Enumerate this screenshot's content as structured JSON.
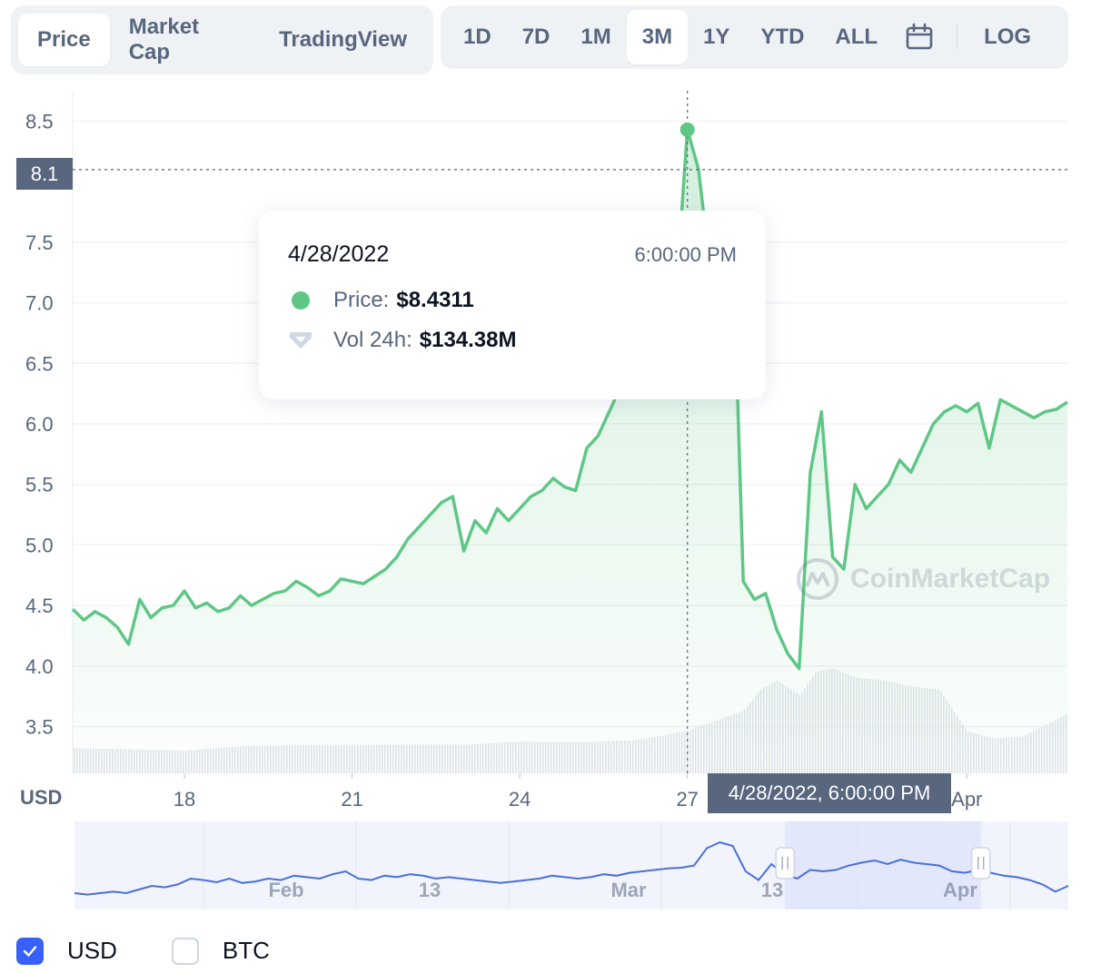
{
  "tabs": {
    "metric": [
      {
        "label": "Price",
        "active": true
      },
      {
        "label": "Market Cap",
        "active": false
      },
      {
        "label": "TradingView",
        "active": false
      }
    ],
    "range": [
      {
        "label": "1D",
        "active": false
      },
      {
        "label": "7D",
        "active": false
      },
      {
        "label": "1M",
        "active": false
      },
      {
        "label": "3M",
        "active": true
      },
      {
        "label": "1Y",
        "active": false
      },
      {
        "label": "YTD",
        "active": false
      },
      {
        "label": "ALL",
        "active": false
      }
    ],
    "calendar_icon": "calendar-icon",
    "log_label": "LOG"
  },
  "tooltip": {
    "date": "4/28/2022",
    "time": "6:00:00 PM",
    "price_key": "Price:",
    "price_value": "$8.4311",
    "vol_key": "Vol 24h:",
    "vol_value": "$134.38M"
  },
  "crosshair": {
    "y_value_label": "8.1",
    "x_value_label": "4/28/2022, 6:00:00 PM"
  },
  "axis_unit_label": "USD",
  "watermark": "CoinMarketCap",
  "legend": [
    {
      "label": "USD",
      "checked": true
    },
    {
      "label": "BTC",
      "checked": false
    }
  ],
  "colors": {
    "price_line": "#5fc786",
    "accent_blue": "#3861fb",
    "navigator_line": "#4a6fd6",
    "navigator_selection": "#e3e8fc",
    "text_secondary": "#58667e",
    "text_primary": "#0d1421"
  },
  "chart_data": {
    "type": "area",
    "title": "",
    "xlabel": "",
    "ylabel": "USD",
    "ylim": [
      3.2,
      8.7
    ],
    "yticks": [
      3.5,
      4.0,
      4.5,
      5.0,
      5.5,
      6.0,
      6.5,
      7.0,
      7.5,
      8.5
    ],
    "xticks": [
      "18",
      "21",
      "24",
      "27",
      "Apr"
    ],
    "grid": true,
    "series": [
      {
        "kind": "price",
        "x": [
          16.0,
          16.2,
          16.4,
          16.6,
          16.8,
          17.0,
          17.2,
          17.4,
          17.6,
          17.8,
          18.0,
          18.2,
          18.4,
          18.6,
          18.8,
          19.0,
          19.2,
          19.4,
          19.6,
          19.8,
          20.0,
          20.2,
          20.4,
          20.6,
          20.8,
          21.0,
          21.2,
          21.4,
          21.6,
          21.8,
          22.0,
          22.2,
          22.4,
          22.6,
          22.8,
          23.0,
          23.2,
          23.4,
          23.6,
          23.8,
          24.0,
          24.2,
          24.4,
          24.6,
          24.8,
          25.0,
          25.2,
          25.4,
          25.6,
          25.8,
          26.0,
          26.2,
          26.4,
          26.6,
          26.8,
          27.0,
          27.2,
          27.4,
          27.6,
          27.8,
          28.0,
          28.2,
          28.4,
          28.6,
          28.8,
          29.0,
          29.2,
          29.4,
          29.6,
          29.8,
          30.0,
          30.2,
          30.4,
          30.6,
          30.8,
          31.0,
          31.2,
          31.4,
          31.6,
          31.8,
          32.0,
          32.2,
          32.4,
          32.6,
          32.8,
          33.0,
          33.2,
          33.4,
          33.6,
          33.8
        ],
        "values": [
          4.47,
          4.38,
          4.45,
          4.4,
          4.32,
          4.18,
          4.55,
          4.4,
          4.48,
          4.5,
          4.62,
          4.48,
          4.52,
          4.45,
          4.48,
          4.58,
          4.5,
          4.55,
          4.6,
          4.62,
          4.7,
          4.65,
          4.58,
          4.62,
          4.72,
          4.7,
          4.68,
          4.74,
          4.8,
          4.9,
          5.05,
          5.15,
          5.25,
          5.35,
          5.4,
          4.95,
          5.2,
          5.1,
          5.3,
          5.2,
          5.3,
          5.4,
          5.45,
          5.55,
          5.48,
          5.45,
          5.8,
          5.9,
          6.1,
          6.3,
          6.5,
          6.7,
          6.85,
          6.55,
          7.1,
          8.43,
          8.1,
          7.3,
          7.1,
          7.7,
          4.7,
          4.55,
          4.6,
          4.3,
          4.1,
          3.98,
          5.6,
          6.1,
          4.9,
          4.8,
          5.5,
          5.3,
          5.4,
          5.5,
          5.7,
          5.6,
          5.8,
          6.0,
          6.1,
          6.15,
          6.1,
          6.17,
          5.8,
          6.2,
          6.15,
          6.1,
          6.05,
          6.1,
          6.12,
          6.18
        ]
      },
      {
        "kind": "volume",
        "x": [
          16.0,
          17.0,
          18.0,
          19.0,
          20.0,
          21.0,
          22.0,
          23.0,
          24.0,
          25.0,
          26.0,
          26.5,
          27.0,
          27.5,
          28.0,
          28.3,
          28.6,
          29.0,
          29.3,
          29.6,
          30.0,
          30.5,
          31.0,
          31.5,
          32.0,
          32.5,
          33.0,
          33.5,
          33.8
        ],
        "values": [
          0.42,
          0.4,
          0.38,
          0.45,
          0.47,
          0.47,
          0.48,
          0.48,
          0.53,
          0.52,
          0.55,
          0.62,
          0.72,
          0.88,
          1.05,
          1.4,
          1.55,
          1.3,
          1.7,
          1.75,
          1.6,
          1.55,
          1.45,
          1.4,
          0.7,
          0.58,
          0.62,
          0.85,
          1.0
        ]
      }
    ]
  },
  "navigator": {
    "labels": [
      "Feb",
      "13",
      "Mar",
      "13",
      "Apr"
    ],
    "selection_start_fraction": 0.715,
    "selection_end_fraction": 0.912,
    "values": [
      0.1,
      0.08,
      0.1,
      0.12,
      0.1,
      0.15,
      0.2,
      0.18,
      0.22,
      0.3,
      0.28,
      0.25,
      0.3,
      0.24,
      0.26,
      0.3,
      0.28,
      0.34,
      0.32,
      0.3,
      0.36,
      0.4,
      0.3,
      0.28,
      0.34,
      0.32,
      0.36,
      0.34,
      0.3,
      0.32,
      0.3,
      0.28,
      0.26,
      0.24,
      0.26,
      0.28,
      0.3,
      0.34,
      0.32,
      0.3,
      0.32,
      0.36,
      0.34,
      0.38,
      0.4,
      0.42,
      0.44,
      0.45,
      0.48,
      0.72,
      0.8,
      0.75,
      0.4,
      0.28,
      0.5,
      0.36,
      0.3,
      0.42,
      0.4,
      0.42,
      0.48,
      0.52,
      0.55,
      0.5,
      0.56,
      0.52,
      0.5,
      0.48,
      0.4,
      0.38,
      0.42,
      0.38,
      0.34,
      0.32,
      0.28,
      0.22,
      0.12,
      0.2
    ]
  }
}
